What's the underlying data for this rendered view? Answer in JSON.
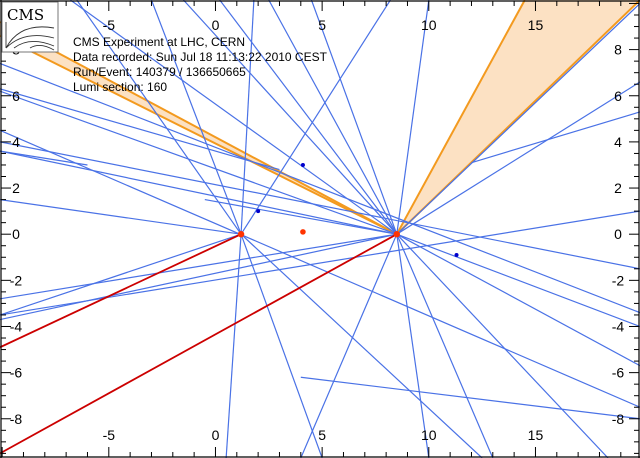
{
  "event_info": {
    "lines": [
      "CMS Experiment at LHC, CERN",
      "Data recorded: Sun Jul 18 11:13:22 2010 CEST",
      "Run/Event: 140379 / 136650665",
      "Lumi section: 160"
    ]
  },
  "logo": {
    "text": "CMS"
  },
  "axes": {
    "x_ticks": [
      "-5",
      "0",
      "5",
      "10",
      "15"
    ],
    "y_ticks": [
      "8",
      "6",
      "4",
      "2",
      "0",
      "-2",
      "-4",
      "-6",
      "-8"
    ],
    "x_range": [
      -10.1,
      19.9
    ],
    "y_range": [
      -9.7,
      10.15
    ]
  },
  "colors": {
    "track": "#4a72e6",
    "muon": "#cc0000",
    "jet_edge": "#f39a1f",
    "jet_fill": "#fbd9b4",
    "vertex": "#ff3300",
    "secondary_vertex": "#0000cc"
  },
  "primary_vertices": [
    [
      1.2,
      0.0
    ],
    [
      8.5,
      0.0
    ]
  ],
  "beamspot": [
    4.1,
    0.1
  ],
  "secondary_vertices": [
    [
      2.0,
      1.0
    ],
    [
      4.1,
      3.0
    ],
    [
      11.3,
      -0.9
    ]
  ],
  "jets": [
    {
      "apex": [
        8.5,
        0.0
      ],
      "edge1": [
        -10.1,
        9.2
      ],
      "edge2": [
        -10.1,
        8.6
      ]
    },
    {
      "apex": [
        8.5,
        0.0
      ],
      "edge1": [
        14.5,
        10.15
      ],
      "edge2": [
        19.9,
        10.15
      ]
    }
  ],
  "muons": [
    {
      "from": [
        1.2,
        0.0
      ],
      "to": [
        -10.1,
        -4.9
      ]
    },
    {
      "from": [
        8.5,
        0.0
      ],
      "to": [
        -10.1,
        -9.5
      ]
    }
  ],
  "tracks": [
    [
      [
        8.5,
        0.0
      ],
      [
        -10.1,
        3.6
      ]
    ],
    [
      [
        8.5,
        0.0
      ],
      [
        -10.1,
        6.2
      ]
    ],
    [
      [
        8.5,
        0.0
      ],
      [
        -6.8,
        10.15
      ]
    ],
    [
      [
        8.5,
        0.0
      ],
      [
        -1.5,
        10.15
      ]
    ],
    [
      [
        8.5,
        0.0
      ],
      [
        0.2,
        10.15
      ]
    ],
    [
      [
        8.5,
        0.0
      ],
      [
        2.5,
        10.15
      ]
    ],
    [
      [
        8.5,
        0.0
      ],
      [
        4.5,
        10.15
      ]
    ],
    [
      [
        8.5,
        0.0
      ],
      [
        10.0,
        10.15
      ]
    ],
    [
      [
        8.5,
        0.0
      ],
      [
        19.9,
        6.6
      ]
    ],
    [
      [
        8.5,
        0.0
      ],
      [
        19.9,
        10.0
      ]
    ],
    [
      [
        8.5,
        0.0
      ],
      [
        19.9,
        -4.0
      ]
    ],
    [
      [
        8.5,
        0.0
      ],
      [
        19.9,
        -5.7
      ]
    ],
    [
      [
        8.5,
        0.0
      ],
      [
        18.4,
        -9.7
      ]
    ],
    [
      [
        8.5,
        0.0
      ],
      [
        13.0,
        -9.7
      ]
    ],
    [
      [
        8.5,
        0.0
      ],
      [
        10.0,
        -9.7
      ]
    ],
    [
      [
        8.5,
        0.0
      ],
      [
        4.0,
        -9.7
      ]
    ],
    [
      [
        8.5,
        0.0
      ],
      [
        -10.1,
        -2.8
      ]
    ],
    [
      [
        8.5,
        0.0
      ],
      [
        -10.1,
        -3.7
      ]
    ],
    [
      [
        8.5,
        0.0
      ],
      [
        -0.5,
        1.5
      ]
    ],
    [
      [
        1.2,
        0.0
      ],
      [
        -10.1,
        1.5
      ]
    ],
    [
      [
        1.2,
        0.0
      ],
      [
        -10.1,
        -3.5
      ]
    ],
    [
      [
        1.2,
        0.0
      ],
      [
        -6.5,
        10.15
      ]
    ],
    [
      [
        1.2,
        0.0
      ],
      [
        -3.0,
        10.15
      ]
    ],
    [
      [
        1.2,
        0.0
      ],
      [
        1.8,
        10.15
      ]
    ],
    [
      [
        1.2,
        0.0
      ],
      [
        5.0,
        -9.7
      ]
    ],
    [
      [
        1.2,
        0.0
      ],
      [
        0.5,
        -9.7
      ]
    ],
    [
      [
        1.2,
        0.0
      ],
      [
        12.5,
        -9.7
      ]
    ],
    [
      [
        1.2,
        0.0
      ],
      [
        8.2,
        10.15
      ]
    ],
    [
      [
        -10.1,
        4.5
      ],
      [
        19.9,
        -7.5
      ]
    ],
    [
      [
        -10.1,
        4.0
      ],
      [
        19.9,
        -1.5
      ]
    ],
    [
      [
        -10.1,
        7.4
      ],
      [
        19.9,
        -3.4
      ]
    ],
    [
      [
        -10.1,
        2.5
      ],
      [
        -10.1,
        2.5
      ]
    ],
    [
      [
        4.0,
        -6.2
      ],
      [
        19.9,
        -8.0
      ]
    ],
    [
      [
        -10.1,
        -3.5
      ],
      [
        19.9,
        1.0
      ]
    ],
    [
      [
        -6.0,
        3.0
      ],
      [
        -10.1,
        3.6
      ]
    ],
    [
      [
        3.0,
        2.8
      ],
      [
        -10.1,
        6.3
      ]
    ],
    [
      [
        19.9,
        5.3
      ],
      [
        12.0,
        3.1
      ]
    ]
  ]
}
